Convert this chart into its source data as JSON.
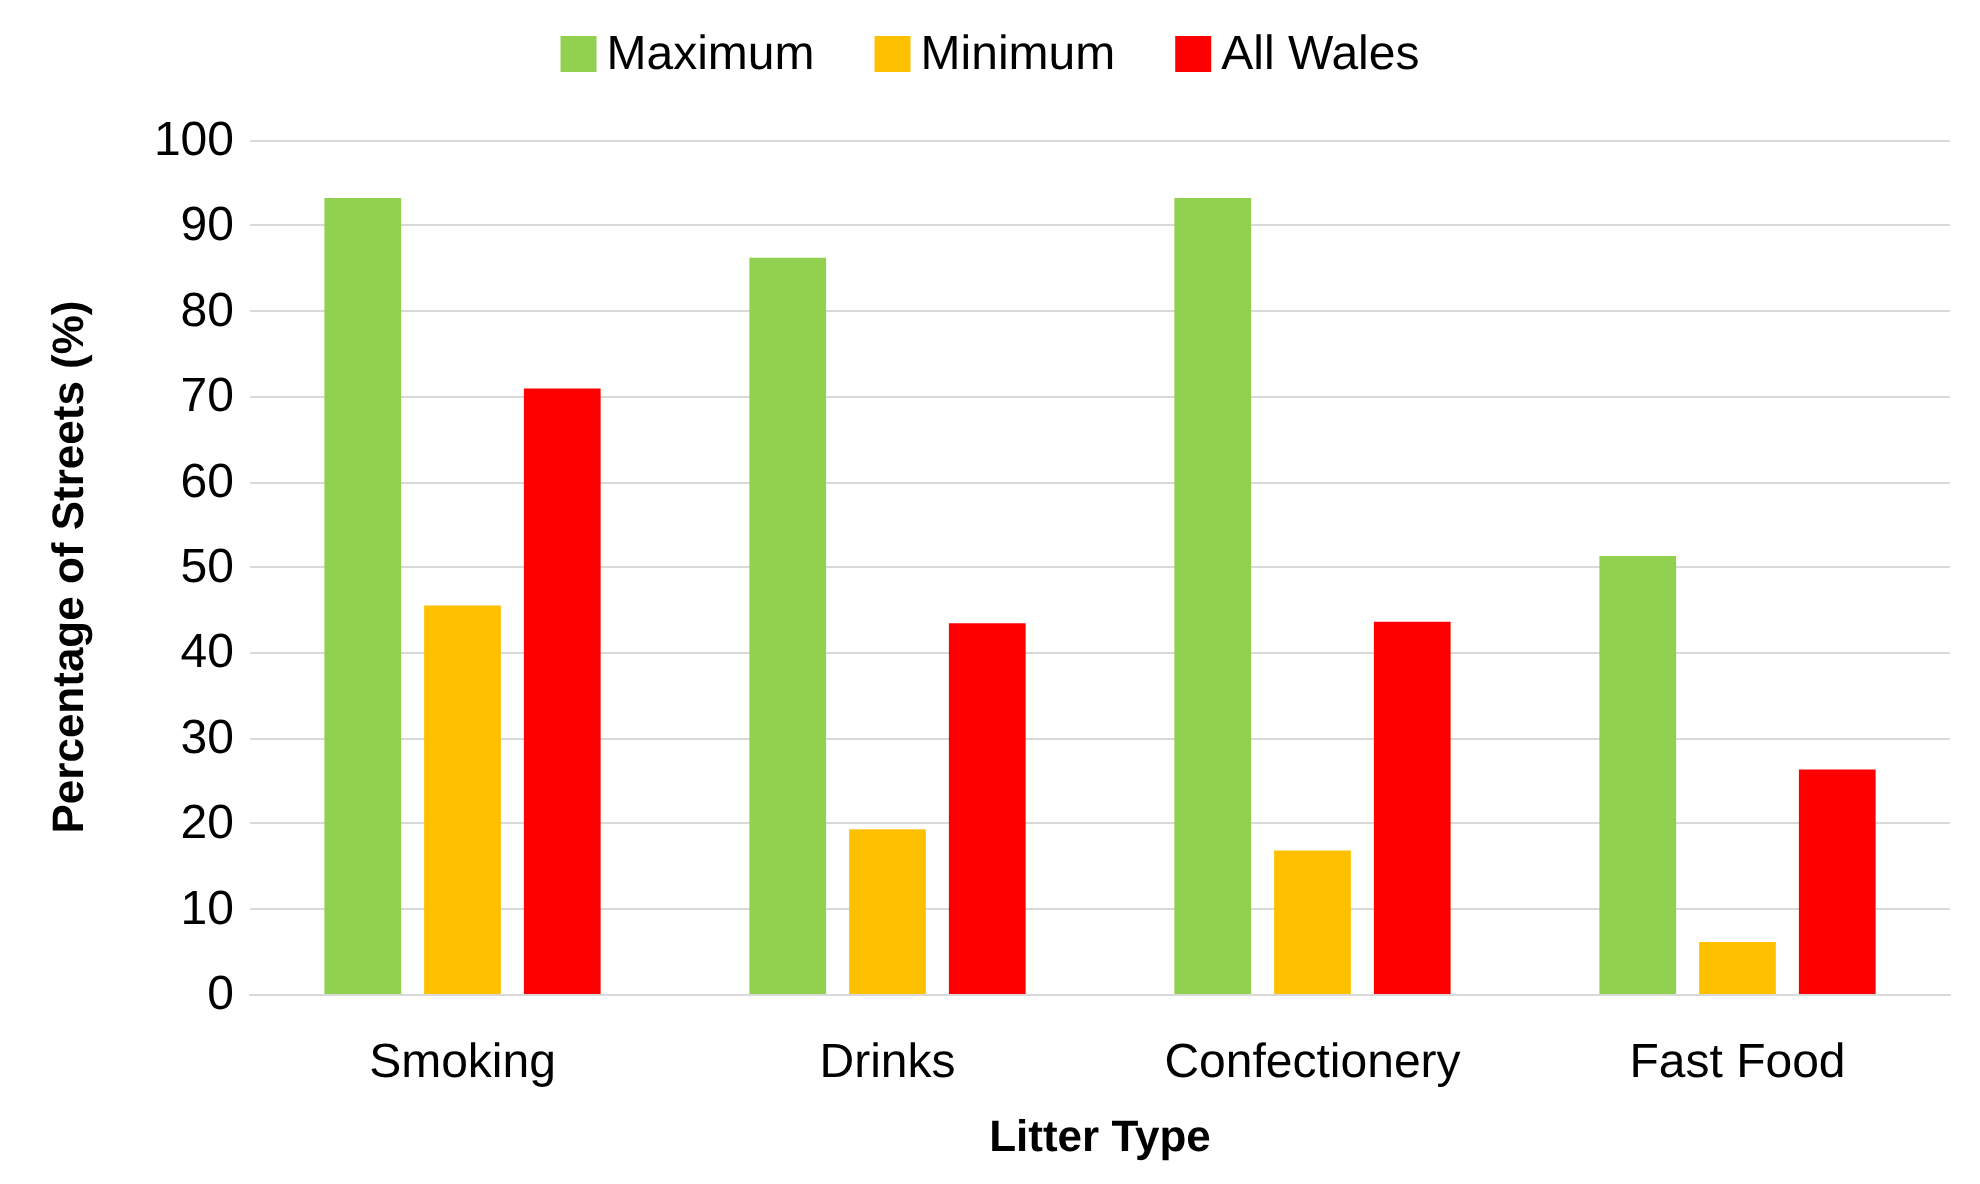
{
  "chart_data": {
    "type": "bar",
    "xlabel": "Litter Type",
    "ylabel": "Percentage of Streets (%)",
    "categories": [
      "Smoking",
      "Drinks",
      "Confectionery",
      "Fast Food"
    ],
    "series": [
      {
        "name": "Maximum",
        "color": "#92d050",
        "values": [
          93.2,
          86.2,
          93.2,
          51.3
        ]
      },
      {
        "name": "Minimum",
        "color": "#ffc000",
        "values": [
          45.5,
          19.3,
          16.8,
          6.1
        ]
      },
      {
        "name": "All Wales",
        "color": "#ff0000",
        "values": [
          70.9,
          43.4,
          43.6,
          26.3
        ]
      }
    ],
    "ylim": [
      0,
      100
    ],
    "yticks": [
      0,
      10,
      20,
      30,
      40,
      50,
      60,
      70,
      80,
      90,
      100
    ],
    "grid": "y",
    "legend": "top"
  }
}
